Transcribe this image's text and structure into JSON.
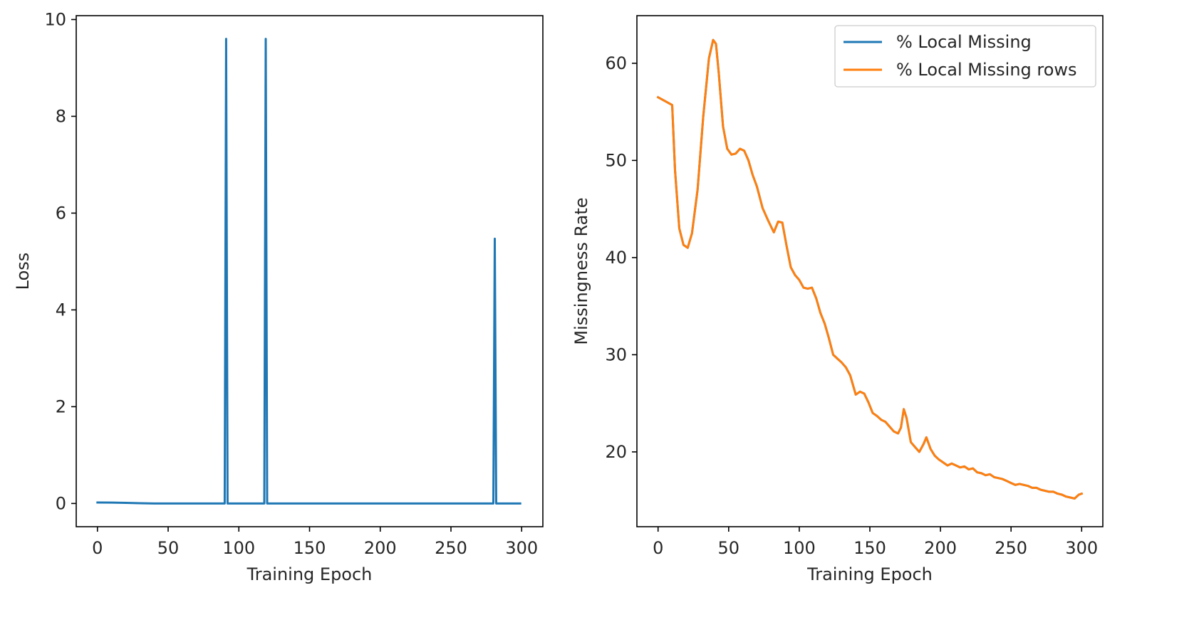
{
  "chart_data": [
    {
      "type": "line",
      "title": "",
      "xlabel": "Training Epoch",
      "ylabel": "Loss",
      "xlim": [
        -15,
        315
      ],
      "ylim": [
        -0.48,
        10.08
      ],
      "xticks": [
        0,
        50,
        100,
        150,
        200,
        250,
        300
      ],
      "yticks": [
        0,
        2,
        4,
        6,
        8,
        10
      ],
      "grid": false,
      "legend": null,
      "series": [
        {
          "color": "#1f77b4",
          "x": [
            0,
            10,
            20,
            30,
            40,
            89,
            90,
            91,
            92,
            93,
            117,
            118,
            119,
            120,
            121,
            279,
            280,
            281,
            282,
            283,
            299
          ],
          "y": [
            0.02,
            0.018,
            0.012,
            0.006,
            0.0,
            0.0,
            0.0,
            9.6,
            0.0,
            0.0,
            0.0,
            0.0,
            9.6,
            0.0,
            0.0,
            0.0,
            0.0,
            5.47,
            0.0,
            0.0,
            0.0
          ]
        }
      ]
    },
    {
      "type": "line",
      "title": "",
      "xlabel": "Training Epoch",
      "ylabel": "Missingness Rate",
      "xlim": [
        -15,
        315
      ],
      "ylim": [
        12.3,
        64.9
      ],
      "xticks": [
        0,
        50,
        100,
        150,
        200,
        250,
        300
      ],
      "yticks": [
        20,
        30,
        40,
        50,
        60
      ],
      "grid": false,
      "legend": "top-right",
      "series": [
        {
          "name": "% Local Missing",
          "color": "#1f77b4",
          "x": [
            0,
            5,
            10,
            12,
            15,
            18,
            21,
            24,
            28,
            32,
            36,
            39,
            41,
            43,
            46,
            49,
            52,
            55,
            58,
            61,
            64,
            67,
            70,
            74,
            78,
            82,
            85,
            88,
            91,
            94,
            97,
            100,
            103,
            106,
            109,
            112,
            115,
            118,
            121,
            124,
            127,
            130,
            133,
            136,
            140,
            143,
            146,
            149,
            152,
            155,
            158,
            161,
            164,
            167,
            170,
            172,
            174,
            176,
            179,
            182,
            185,
            188,
            190,
            193,
            196,
            199,
            202,
            205,
            208,
            211,
            214,
            217,
            220,
            223,
            226,
            229,
            232,
            235,
            238,
            241,
            244,
            247,
            250,
            253,
            256,
            259,
            262,
            265,
            268,
            271,
            274,
            277,
            280,
            283,
            286,
            289,
            292,
            295,
            298,
            300
          ],
          "y": [
            56.5,
            56.1,
            55.7,
            49.0,
            43.0,
            41.3,
            41.0,
            42.5,
            47.0,
            54.5,
            60.5,
            62.4,
            62.0,
            59.0,
            53.5,
            51.2,
            50.6,
            50.7,
            51.2,
            51.0,
            50.0,
            48.5,
            47.3,
            45.1,
            43.8,
            42.6,
            43.7,
            43.6,
            41.2,
            39.0,
            38.2,
            37.7,
            36.9,
            36.8,
            36.9,
            35.8,
            34.3,
            33.2,
            31.7,
            30.0,
            29.6,
            29.2,
            28.7,
            27.9,
            25.9,
            26.2,
            26.0,
            25.1,
            24.0,
            23.7,
            23.3,
            23.1,
            22.6,
            22.1,
            21.9,
            22.5,
            24.4,
            23.5,
            21.0,
            20.5,
            20.0,
            20.8,
            21.5,
            20.3,
            19.6,
            19.2,
            18.9,
            18.6,
            18.8,
            18.6,
            18.4,
            18.5,
            18.2,
            18.3,
            17.9,
            17.8,
            17.6,
            17.7,
            17.4,
            17.3,
            17.2,
            17.0,
            16.8,
            16.6,
            16.7,
            16.6,
            16.5,
            16.3,
            16.3,
            16.1,
            16.0,
            15.9,
            15.9,
            15.7,
            15.6,
            15.4,
            15.3,
            15.2,
            15.6,
            15.7
          ]
        },
        {
          "name": "% Local Missing rows",
          "color": "#ff7f0e",
          "x": [
            0,
            5,
            10,
            12,
            15,
            18,
            21,
            24,
            28,
            32,
            36,
            39,
            41,
            43,
            46,
            49,
            52,
            55,
            58,
            61,
            64,
            67,
            70,
            74,
            78,
            82,
            85,
            88,
            91,
            94,
            97,
            100,
            103,
            106,
            109,
            112,
            115,
            118,
            121,
            124,
            127,
            130,
            133,
            136,
            140,
            143,
            146,
            149,
            152,
            155,
            158,
            161,
            164,
            167,
            170,
            172,
            174,
            176,
            179,
            182,
            185,
            188,
            190,
            193,
            196,
            199,
            202,
            205,
            208,
            211,
            214,
            217,
            220,
            223,
            226,
            229,
            232,
            235,
            238,
            241,
            244,
            247,
            250,
            253,
            256,
            259,
            262,
            265,
            268,
            271,
            274,
            277,
            280,
            283,
            286,
            289,
            292,
            295,
            298,
            300
          ],
          "y": [
            56.5,
            56.1,
            55.7,
            49.0,
            43.0,
            41.3,
            41.0,
            42.5,
            47.0,
            54.5,
            60.5,
            62.4,
            62.0,
            59.0,
            53.5,
            51.2,
            50.6,
            50.7,
            51.2,
            51.0,
            50.0,
            48.5,
            47.3,
            45.1,
            43.8,
            42.6,
            43.7,
            43.6,
            41.2,
            39.0,
            38.2,
            37.7,
            36.9,
            36.8,
            36.9,
            35.8,
            34.3,
            33.2,
            31.7,
            30.0,
            29.6,
            29.2,
            28.7,
            27.9,
            25.9,
            26.2,
            26.0,
            25.1,
            24.0,
            23.7,
            23.3,
            23.1,
            22.6,
            22.1,
            21.9,
            22.5,
            24.4,
            23.5,
            21.0,
            20.5,
            20.0,
            20.8,
            21.5,
            20.3,
            19.6,
            19.2,
            18.9,
            18.6,
            18.8,
            18.6,
            18.4,
            18.5,
            18.2,
            18.3,
            17.9,
            17.8,
            17.6,
            17.7,
            17.4,
            17.3,
            17.2,
            17.0,
            16.8,
            16.6,
            16.7,
            16.6,
            16.5,
            16.3,
            16.3,
            16.1,
            16.0,
            15.9,
            15.9,
            15.7,
            15.6,
            15.4,
            15.3,
            15.2,
            15.6,
            15.7
          ]
        }
      ]
    }
  ]
}
